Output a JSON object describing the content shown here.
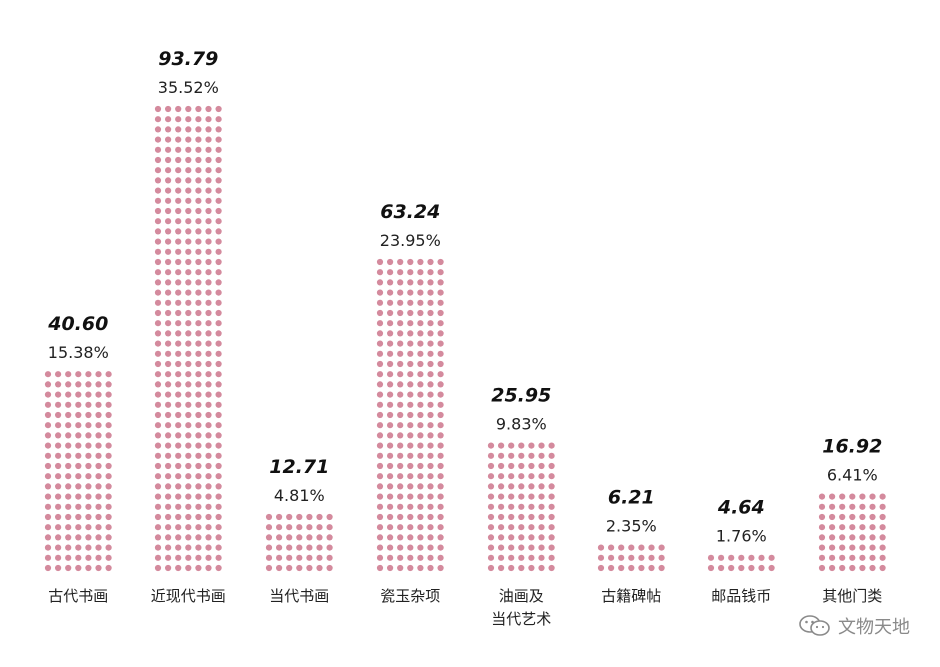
{
  "chart_data": {
    "type": "bar",
    "style": "dot-matrix",
    "color": "#d48a9d",
    "categories": [
      "古代书画",
      "近现代书画",
      "当代书画",
      "瓷玉杂项",
      "油画及\n当代艺术",
      "古籍碑帖",
      "邮品钱币",
      "其他门类"
    ],
    "values": [
      40.6,
      93.79,
      12.71,
      63.24,
      25.95,
      6.21,
      4.64,
      16.92
    ],
    "value_labels": [
      "40.60",
      "93.79",
      "12.71",
      "63.24",
      "25.95",
      "6.21",
      "4.64",
      "16.92"
    ],
    "percent_labels": [
      "15.38%",
      "35.52%",
      "4.81%",
      "23.95%",
      "9.83%",
      "2.35%",
      "1.76%",
      "6.41%"
    ],
    "title": "",
    "xlabel": "",
    "ylabel": "",
    "grid": false,
    "legend": "none"
  },
  "watermark": {
    "text": "文物天地",
    "icon": "wechat-icon"
  }
}
